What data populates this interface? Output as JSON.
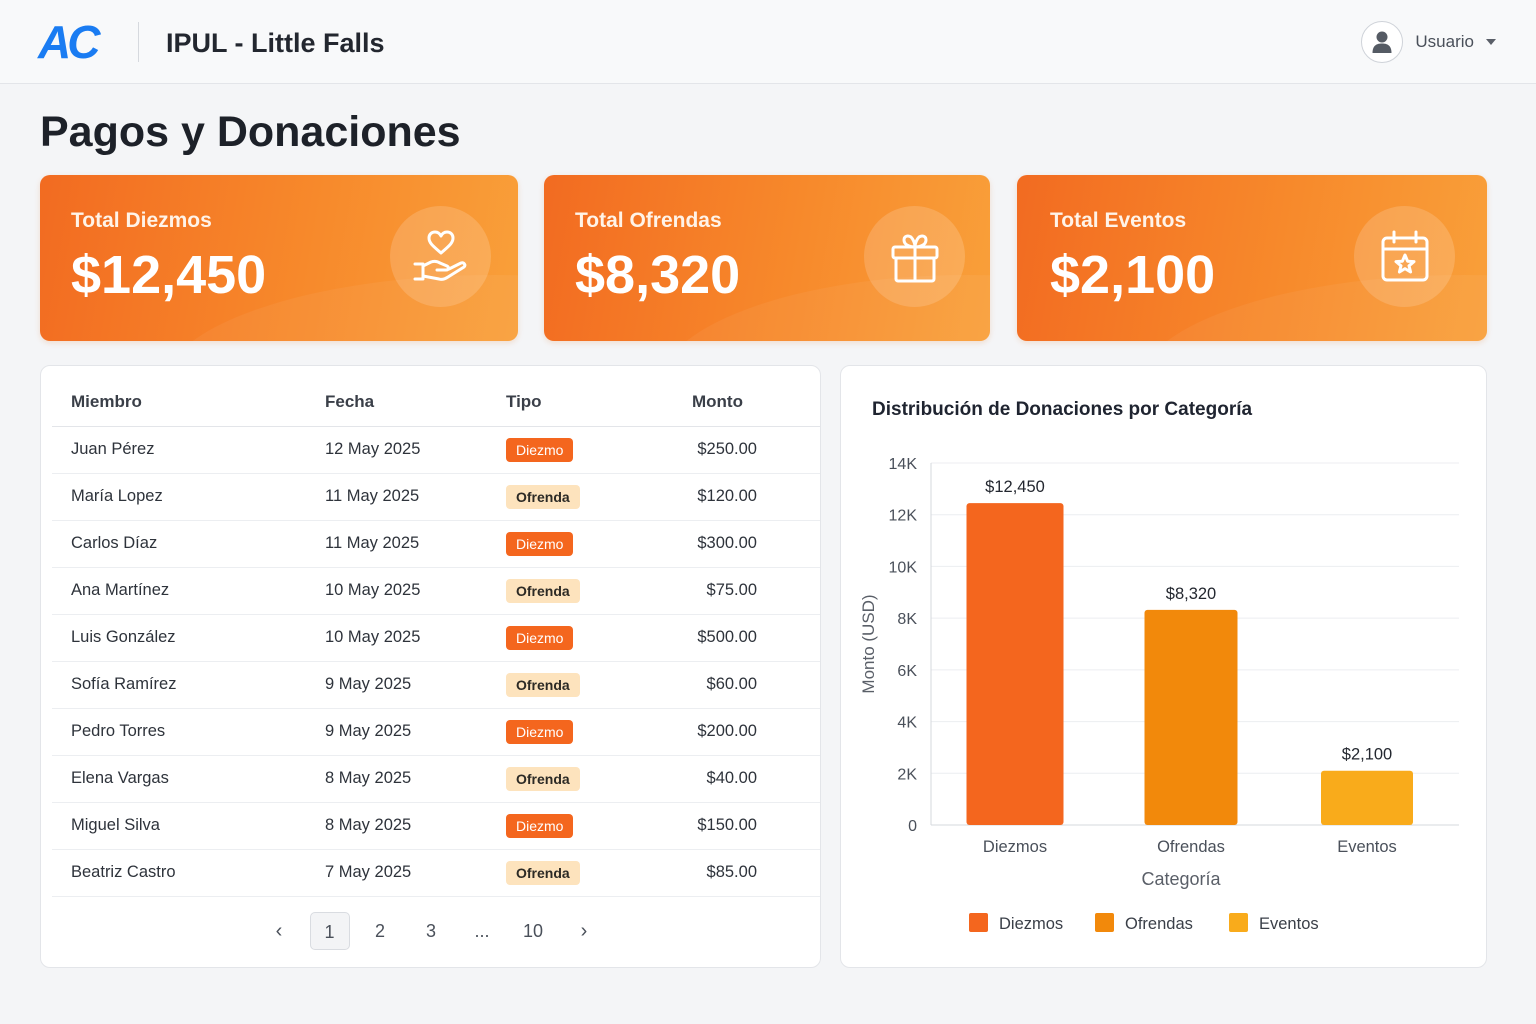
{
  "header": {
    "logo": "AC",
    "title": "IPUL - Little Falls",
    "user_label": "Usuario",
    "user_icon": "user-avatar-icon"
  },
  "page_title": "Pagos y Donaciones",
  "stats": [
    {
      "label": "Total Diezmos",
      "value": "$12,450",
      "icon": "hand-heart-icon"
    },
    {
      "label": "Total Ofrendas",
      "value": "$8,320",
      "icon": "gift-icon"
    },
    {
      "label": "Total Eventos",
      "value": "$2,100",
      "icon": "calendar-star-icon"
    }
  ],
  "table": {
    "headers": [
      "Miembro",
      "Fecha",
      "Tipo",
      "Monto"
    ],
    "rows": [
      {
        "member": "Juan Pérez",
        "date": "12 May 2025",
        "type": "Diezmo",
        "amount": "$250.00"
      },
      {
        "member": "María Lopez",
        "date": "11 May 2025",
        "type": "Ofrenda",
        "amount": "$120.00"
      },
      {
        "member": "Carlos Díaz",
        "date": "11 May 2025",
        "type": "Diezmo",
        "amount": "$300.00"
      },
      {
        "member": "Ana Martínez",
        "date": "10 May 2025",
        "type": "Ofrenda",
        "amount": "$75.00"
      },
      {
        "member": "Luis González",
        "date": "10 May 2025",
        "type": "Diezmo",
        "amount": "$500.00"
      },
      {
        "member": "Sofía Ramírez",
        "date": "9 May 2025",
        "type": "Ofrenda",
        "amount": "$60.00"
      },
      {
        "member": "Pedro Torres",
        "date": "9 May 2025",
        "type": "Diezmo",
        "amount": "$200.00"
      },
      {
        "member": "Elena Vargas",
        "date": "8 May 2025",
        "type": "Ofrenda",
        "amount": "$40.00"
      },
      {
        "member": "Miguel Silva",
        "date": "8 May 2025",
        "type": "Diezmo",
        "amount": "$150.00"
      },
      {
        "member": "Beatriz Castro",
        "date": "7 May 2025",
        "type": "Ofrenda",
        "amount": "$85.00"
      }
    ]
  },
  "pagination": {
    "prev": "‹",
    "pages": [
      "1",
      "2",
      "3",
      "...",
      "10"
    ],
    "current": "1",
    "next": "›"
  },
  "chart_data": {
    "type": "bar",
    "title": "Distribución de Donaciones por Categoría",
    "categories": [
      "Diezmos",
      "Ofrendas",
      "Eventos"
    ],
    "values": [
      12450,
      8320,
      2100
    ],
    "value_labels": [
      "$12,450",
      "$8,320",
      "$2,100"
    ],
    "colors": [
      "#f4661e",
      "#f2890b",
      "#f9ab1b"
    ],
    "xlabel": "Categoría",
    "ylabel": "Monto (USD)",
    "ylim": [
      0,
      14000
    ],
    "yticks": [
      0,
      2000,
      4000,
      6000,
      8000,
      10000,
      12000,
      14000
    ],
    "ytick_labels": [
      "0",
      "2K",
      "4K",
      "6K",
      "8K",
      "10K",
      "12K",
      "14K"
    ],
    "grid": true,
    "legend": [
      "Diezmos",
      "Ofrendas",
      "Eventos"
    ],
    "legend_position": "bottom"
  }
}
